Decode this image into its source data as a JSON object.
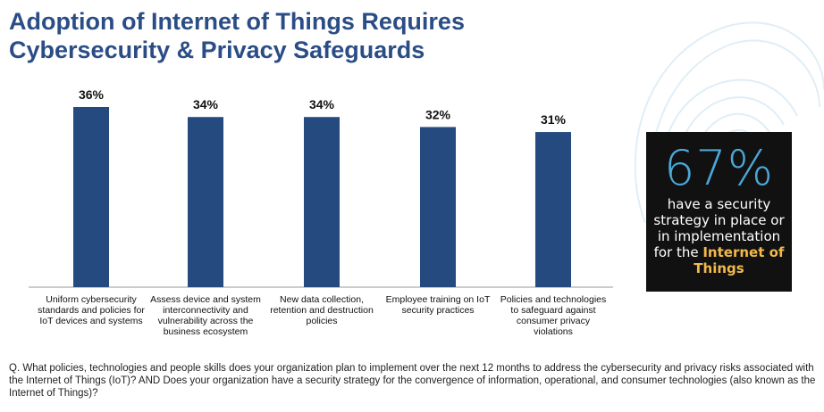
{
  "title": {
    "line1": "Adoption of Internet of Things Requires",
    "line2": "Cybersecurity & Privacy Safeguards"
  },
  "chart_data": {
    "type": "bar",
    "categories": [
      [
        "Uniform cybersecurity",
        "standards and policies for",
        "IoT devices and systems"
      ],
      [
        "Assess device and system",
        "interconnectivity and",
        "vulnerability across the",
        "business ecosystem"
      ],
      [
        "New data collection,",
        "retention and destruction",
        "policies"
      ],
      [
        "Employee training on IoT",
        "security practices"
      ],
      [
        "Policies and technologies",
        "to safeguard against",
        "consumer privacy",
        "violations"
      ]
    ],
    "values": [
      36,
      34,
      34,
      32,
      31
    ],
    "data_labels": [
      "36%",
      "34%",
      "34%",
      "32%",
      "31%"
    ],
    "ylim": [
      0,
      36
    ],
    "bar_color": "#254a80",
    "grid": false
  },
  "callout": {
    "value": "67%",
    "text_line1": "have a security",
    "text_line2": "strategy in place or",
    "text_line3": "in implementation",
    "text_line4_pre": "for the ",
    "text_line4_hl": "Internet of",
    "text_line5_hl": "Things"
  },
  "question": "Q. What policies, technologies and people skills does your organization plan to implement over the next 12 months to address the cybersecurity and privacy risks associated with the Internet of Things (IoT)? AND Does your organization have a security strategy for the convergence of information, operational, and consumer technologies (also known as the Internet of Things)?"
}
